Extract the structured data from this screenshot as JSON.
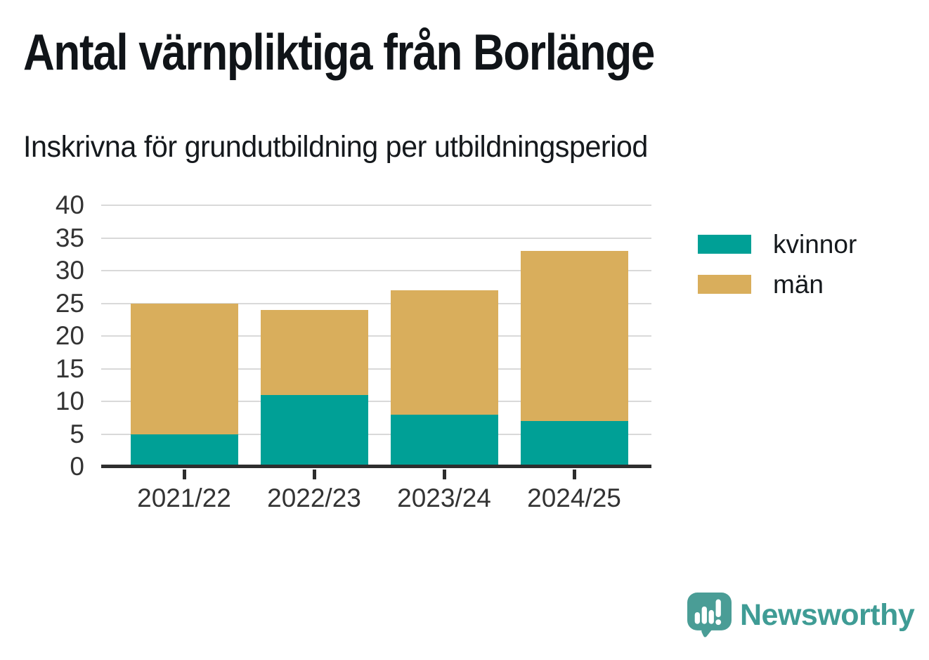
{
  "title": "Antal värnpliktiga från Borlänge",
  "subtitle": "Inskrivna för grundutbildning per utbildningsperiod",
  "chart_data": {
    "type": "bar",
    "stacked": true,
    "title": "Antal värnpliktiga från Borlänge",
    "subtitle": "Inskrivna för grundutbildning per utbildningsperiod",
    "categories": [
      "2021/22",
      "2022/23",
      "2023/24",
      "2024/25"
    ],
    "series": [
      {
        "name": "kvinnor",
        "color": "#00a096",
        "values": [
          5,
          11,
          8,
          7
        ]
      },
      {
        "name": "män",
        "color": "#d9ae5c",
        "values": [
          20,
          13,
          19,
          26
        ]
      }
    ],
    "stack_totals": [
      25,
      24,
      27,
      33
    ],
    "xlabel": "",
    "ylabel": "",
    "ylim": [
      0,
      40
    ],
    "yticks": [
      0,
      5,
      10,
      15,
      20,
      25,
      30,
      35,
      40
    ],
    "grid": "horizontal",
    "legend_position": "right"
  },
  "branding": {
    "name": "Newsworthy",
    "color": "#3f9c95",
    "icon": "newsworthy-speech-bubble-bar-chart-icon"
  },
  "colors": {
    "kvinnor": "#00a096",
    "men": "#d9ae5c",
    "gridline": "#d9d9d9",
    "axis": "#2e2e2e",
    "axis_text": "#333333",
    "text": "#101418",
    "brand": "#3f9c95"
  }
}
